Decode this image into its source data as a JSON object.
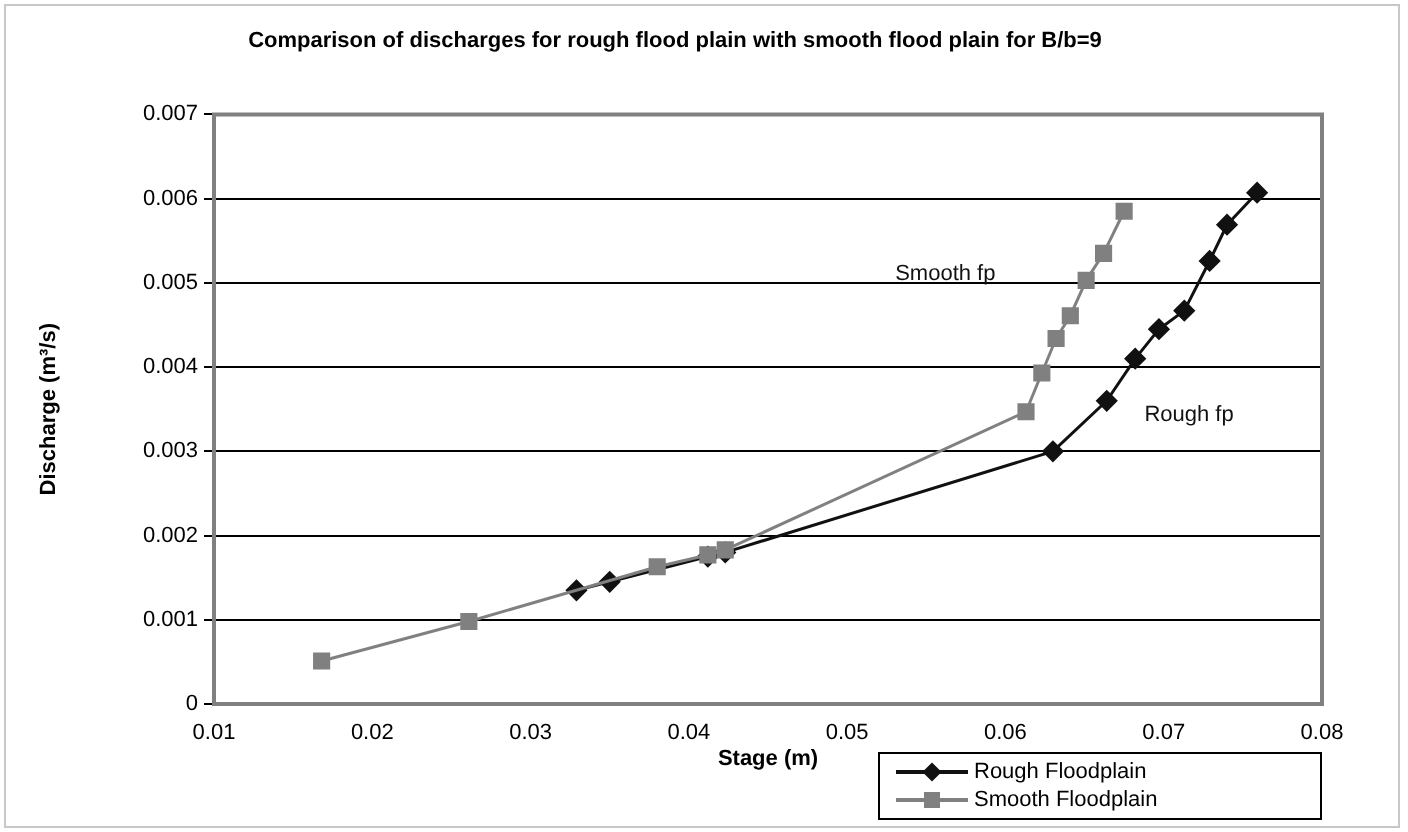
{
  "chart_data": {
    "type": "line",
    "title": "Comparison of discharges for rough flood plain with smooth flood plain for B/b=9",
    "xlabel": "Stage (m)",
    "ylabel": "Discharge (m³/s)",
    "xlim": [
      0.01,
      0.08
    ],
    "xticks": [
      0.01,
      0.02,
      0.03,
      0.04,
      0.05,
      0.06,
      0.07,
      0.08
    ],
    "ylim": [
      0,
      0.007
    ],
    "yticks": [
      0,
      0.001,
      0.002,
      0.003,
      0.004,
      0.005,
      0.006,
      0.007
    ],
    "grid": "y",
    "legend": "bottom right",
    "line_style": "solid",
    "series": [
      {
        "name": "Rough Floodplain",
        "color": "#111111",
        "marker": "diamond",
        "x": [
          0.0329,
          0.035,
          0.0412,
          0.0423,
          0.063,
          0.0664,
          0.0682,
          0.0697,
          0.0713,
          0.0729,
          0.074,
          0.0759
        ],
        "values": [
          0.00135,
          0.00145,
          0.00175,
          0.0018,
          0.003,
          0.0036,
          0.0041,
          0.00445,
          0.00467,
          0.00526,
          0.00569,
          0.00607
        ]
      },
      {
        "name": "Smooth Floodplain",
        "color": "#808080",
        "marker": "square",
        "x": [
          0.0168,
          0.0261,
          0.038,
          0.0412,
          0.0423,
          0.0613,
          0.0623,
          0.0632,
          0.0641,
          0.0651,
          0.0662,
          0.0675
        ],
        "values": [
          0.00051,
          0.00098,
          0.00163,
          0.00177,
          0.00183,
          0.00347,
          0.00393,
          0.00434,
          0.00461,
          0.00503,
          0.00535,
          0.00585
        ]
      }
    ],
    "annotations": [
      "Smooth fp",
      "Rough fp"
    ]
  }
}
